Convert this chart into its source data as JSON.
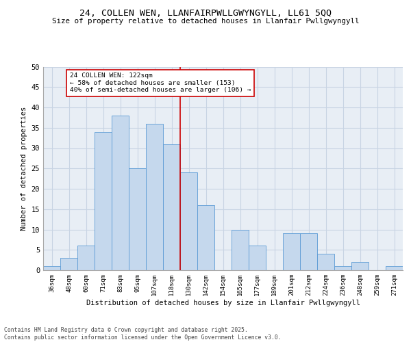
{
  "title1": "24, COLLEN WEN, LLANFAIRPWLLGWYNGYLL, LL61 5QQ",
  "title2": "Size of property relative to detached houses in Llanfair Pwllgwyngyll",
  "xlabel": "Distribution of detached houses by size in Llanfair Pwllgwyngyll",
  "ylabel": "Number of detached properties",
  "footnote": "Contains HM Land Registry data © Crown copyright and database right 2025.\nContains public sector information licensed under the Open Government Licence v3.0.",
  "bin_labels": [
    "36sqm",
    "48sqm",
    "60sqm",
    "71sqm",
    "83sqm",
    "95sqm",
    "107sqm",
    "118sqm",
    "130sqm",
    "142sqm",
    "154sqm",
    "165sqm",
    "177sqm",
    "189sqm",
    "201sqm",
    "212sqm",
    "224sqm",
    "236sqm",
    "248sqm",
    "259sqm",
    "271sqm"
  ],
  "bar_values": [
    1,
    3,
    6,
    34,
    38,
    25,
    36,
    31,
    24,
    16,
    0,
    10,
    6,
    0,
    9,
    9,
    4,
    1,
    2,
    0,
    1
  ],
  "bar_color": "#c5d8ed",
  "bar_edge_color": "#5b9bd5",
  "vline_color": "#cc0000",
  "annotation_text": "24 COLLEN WEN: 122sqm\n← 58% of detached houses are smaller (153)\n40% of semi-detached houses are larger (106) →",
  "annotation_box_color": "#cc0000",
  "ylim": [
    0,
    50
  ],
  "yticks": [
    0,
    5,
    10,
    15,
    20,
    25,
    30,
    35,
    40,
    45,
    50
  ],
  "grid_color": "#c8d4e3",
  "background_color": "#e8eef5"
}
